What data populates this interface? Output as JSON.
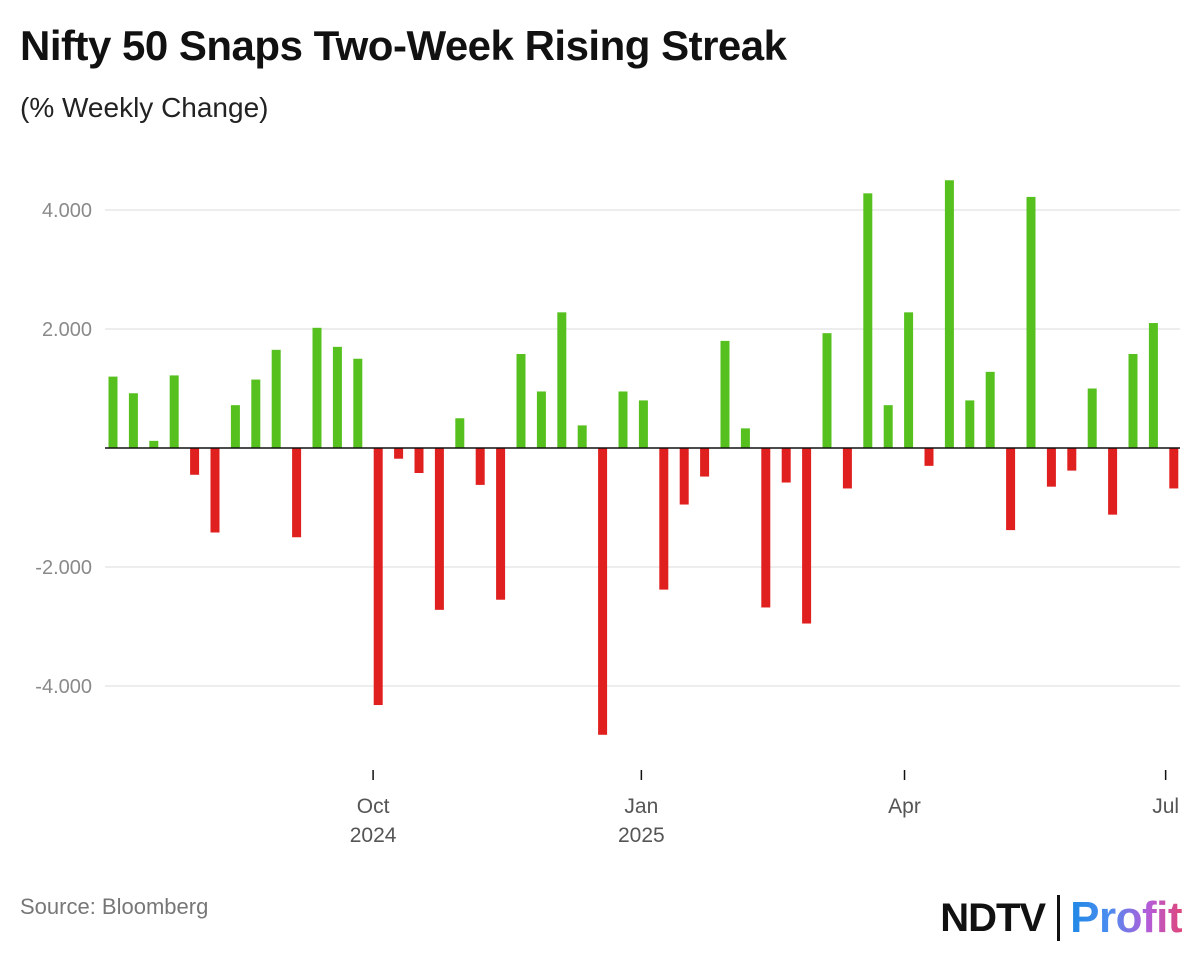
{
  "title": "Nifty 50 Snaps Two-Week Rising Streak",
  "subtitle": "(% Weekly Change)",
  "source": "Source: Bloomberg",
  "logo": {
    "part1": "NDTV",
    "part2": "Profit"
  },
  "colors": {
    "positive": "#56c01e",
    "negative": "#e01f1f",
    "grid": "#e2e2e2",
    "axis": "#111111"
  },
  "chart_data": {
    "type": "bar",
    "ylabel": "% Weekly Change",
    "ylim": [
      -5,
      5
    ],
    "yticks": [
      {
        "value": 4,
        "label": "4.000"
      },
      {
        "value": 2,
        "label": "2.000"
      },
      {
        "value": -2,
        "label": "-2.000"
      },
      {
        "value": -4,
        "label": "-4.000"
      }
    ],
    "xticks": [
      {
        "index": 12.75,
        "line1": "Oct",
        "line2": "2024"
      },
      {
        "index": 25.9,
        "line1": "Jan",
        "line2": "2025"
      },
      {
        "index": 38.8,
        "line1": "Apr",
        "line2": ""
      },
      {
        "index": 51.6,
        "line1": "Jul",
        "line2": ""
      }
    ],
    "values": [
      1.2,
      0.92,
      0.12,
      1.22,
      -0.45,
      -1.42,
      0.72,
      1.15,
      1.65,
      -1.5,
      2.02,
      1.7,
      1.5,
      -4.32,
      -0.18,
      -0.42,
      -2.72,
      0.5,
      -0.62,
      -2.55,
      1.58,
      0.95,
      2.28,
      0.38,
      -4.82,
      0.95,
      0.8,
      -2.38,
      -0.95,
      -0.48,
      1.8,
      0.33,
      -2.68,
      -0.58,
      -2.95,
      1.93,
      -0.68,
      4.28,
      0.72,
      2.28,
      -0.3,
      4.5,
      0.8,
      1.28,
      -1.38,
      4.22,
      -0.65,
      -0.38,
      1.0,
      -1.12,
      1.58,
      2.1,
      -0.68
    ]
  }
}
